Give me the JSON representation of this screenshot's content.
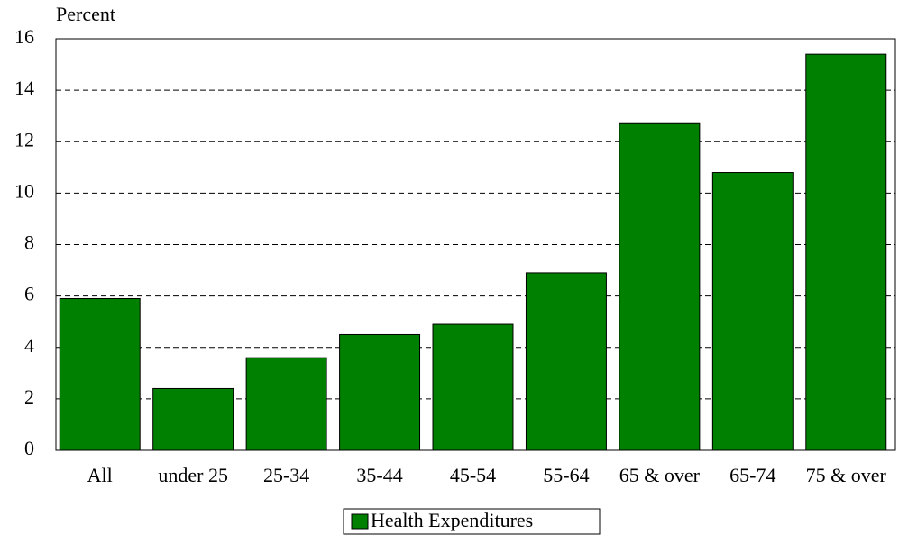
{
  "chart_data": {
    "type": "bar",
    "y_label": "Percent",
    "categories": [
      "All",
      "under 25",
      "25-34",
      "35-44",
      "45-54",
      "55-64",
      "65 & over",
      "65-74",
      "75 & over"
    ],
    "series": [
      {
        "name": "Health Expenditures",
        "color": "#008000",
        "values": [
          5.9,
          2.4,
          3.6,
          4.5,
          4.9,
          6.9,
          12.7,
          10.8,
          15.4
        ]
      }
    ],
    "ylim": [
      0,
      16
    ],
    "yticks": [
      0,
      2,
      4,
      6,
      8,
      10,
      12,
      14,
      16
    ],
    "grid": true,
    "legend": "bottom"
  }
}
